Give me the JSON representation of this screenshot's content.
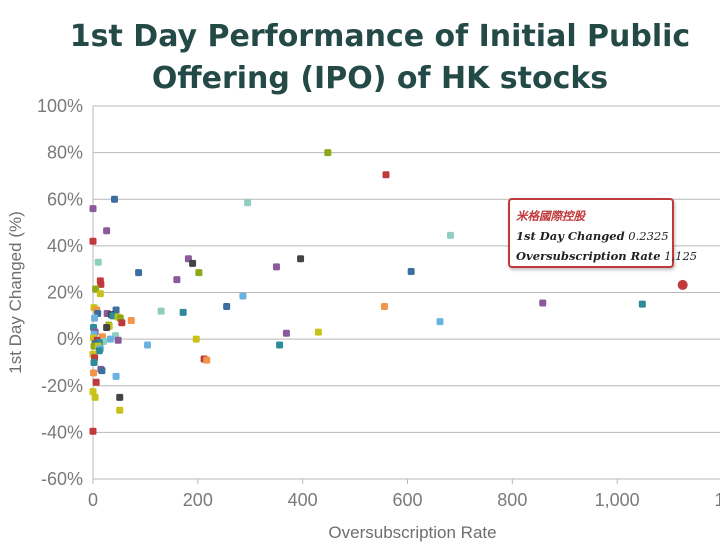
{
  "chart_data": {
    "type": "scatter",
    "title_lines": [
      "1st Day Performance of Initial Public",
      "Offering (IPO) of HK stocks"
    ],
    "xlabel": "Oversubscription Rate",
    "ylabel": "1st Day Changed (%)",
    "xlim": [
      0,
      1200
    ],
    "ylim": [
      -60,
      100
    ],
    "x_ticks": [
      "0",
      "200",
      "400",
      "600",
      "800",
      "1,000",
      "1,"
    ],
    "y_ticks": [
      "-60%",
      "-40%",
      "-20%",
      "0%",
      "20%",
      "40%",
      "60%",
      "80%",
      "100%"
    ],
    "grid": "horizontal",
    "tooltip": {
      "name": "米格國際控股",
      "label1": "1st Day Changed",
      "value1": "0.2325",
      "label2": "Oversubscription Rate",
      "value2": "1,125"
    },
    "points": [
      {
        "x": 448,
        "y": 80,
        "c": "#8aaa1a"
      },
      {
        "x": 559,
        "y": 70.5,
        "c": "#c0393b"
      },
      {
        "x": 41,
        "y": 60,
        "c": "#3e6e9e"
      },
      {
        "x": 295,
        "y": 58.5,
        "c": "#8ecfc0"
      },
      {
        "x": 0,
        "y": 56,
        "c": "#8b5a9a"
      },
      {
        "x": 26,
        "y": 46.5,
        "c": "#8b5a9a"
      },
      {
        "x": 682,
        "y": 44.5,
        "c": "#8ecfc0"
      },
      {
        "x": 0,
        "y": 42,
        "c": "#c0393b"
      },
      {
        "x": 396,
        "y": 34.5,
        "c": "#444444"
      },
      {
        "x": 182,
        "y": 34.5,
        "c": "#8b5a9a"
      },
      {
        "x": 10,
        "y": 33,
        "c": "#8ecfc0"
      },
      {
        "x": 190,
        "y": 32.5,
        "c": "#444444"
      },
      {
        "x": 350,
        "y": 31,
        "c": "#8b5a9a"
      },
      {
        "x": 607,
        "y": 29,
        "c": "#3e6e9e"
      },
      {
        "x": 87,
        "y": 28.5,
        "c": "#3e6e9e"
      },
      {
        "x": 202,
        "y": 28.5,
        "c": "#8aaa1a"
      },
      {
        "x": 160,
        "y": 25.5,
        "c": "#8b5a9a"
      },
      {
        "x": 14,
        "y": 25,
        "c": "#c0393b"
      },
      {
        "x": 15,
        "y": 23.5,
        "c": "#c0393b"
      },
      {
        "x": 1125,
        "y": 23.25,
        "c": "#c0393b",
        "r": 5
      },
      {
        "x": 5,
        "y": 21.5,
        "c": "#8aaa1a"
      },
      {
        "x": 14,
        "y": 19.5,
        "c": "#c9c21a"
      },
      {
        "x": 286,
        "y": 18.5,
        "c": "#6ab3e0"
      },
      {
        "x": 858,
        "y": 15.5,
        "c": "#8b5a9a"
      },
      {
        "x": 1048,
        "y": 15,
        "c": "#2e8b9a"
      },
      {
        "x": 556,
        "y": 14,
        "c": "#f0954a"
      },
      {
        "x": 255,
        "y": 14,
        "c": "#3e6e9e"
      },
      {
        "x": 2,
        "y": 13.5,
        "c": "#c9c21a"
      },
      {
        "x": 7,
        "y": 12.5,
        "c": "#f0954a"
      },
      {
        "x": 44,
        "y": 12.5,
        "c": "#3e6e9e"
      },
      {
        "x": 130,
        "y": 12,
        "c": "#8ecfc0"
      },
      {
        "x": 172,
        "y": 11.5,
        "c": "#2e8b9a"
      },
      {
        "x": 27,
        "y": 11,
        "c": "#8b5a9a"
      },
      {
        "x": 9,
        "y": 11,
        "c": "#3e6e9e"
      },
      {
        "x": 35,
        "y": 10.5,
        "c": "#444444"
      },
      {
        "x": 38,
        "y": 10,
        "c": "#2e8b9a"
      },
      {
        "x": 48,
        "y": 9.5,
        "c": "#c9c21a"
      },
      {
        "x": 52,
        "y": 9,
        "c": "#8aaa1a"
      },
      {
        "x": 3,
        "y": 9,
        "c": "#6ab3e0"
      },
      {
        "x": 73,
        "y": 8,
        "c": "#f0954a"
      },
      {
        "x": 662,
        "y": 7.5,
        "c": "#6ab3e0"
      },
      {
        "x": 55,
        "y": 7,
        "c": "#c0393b"
      },
      {
        "x": 30,
        "y": 6,
        "c": "#8aaa1a"
      },
      {
        "x": 31,
        "y": 5.5,
        "c": "#c9c21a"
      },
      {
        "x": 26,
        "y": 5,
        "c": "#444444"
      },
      {
        "x": 1,
        "y": 5,
        "c": "#2e8b9a"
      },
      {
        "x": 4,
        "y": 3,
        "c": "#8b5a9a"
      },
      {
        "x": 430,
        "y": 3,
        "c": "#c9c21a"
      },
      {
        "x": 369,
        "y": 2.5,
        "c": "#8b5a9a"
      },
      {
        "x": 2,
        "y": 2,
        "c": "#6ab3e0"
      },
      {
        "x": 43,
        "y": 1.5,
        "c": "#8ecfc0"
      },
      {
        "x": 18,
        "y": 1,
        "c": "#f0954a"
      },
      {
        "x": 1,
        "y": 0.5,
        "c": "#c9c21a"
      },
      {
        "x": 197,
        "y": 0,
        "c": "#c9c21a"
      },
      {
        "x": 33,
        "y": 0,
        "c": "#6ab3e0"
      },
      {
        "x": 48,
        "y": -0.5,
        "c": "#8b5a9a"
      },
      {
        "x": 8,
        "y": -0.5,
        "c": "#c0393b"
      },
      {
        "x": 20,
        "y": -1,
        "c": "#8ecfc0"
      },
      {
        "x": 12,
        "y": -1.5,
        "c": "#2e8b9a"
      },
      {
        "x": 4,
        "y": -2,
        "c": "#3e6e9e"
      },
      {
        "x": 104,
        "y": -2.5,
        "c": "#6ab3e0"
      },
      {
        "x": 356,
        "y": -2.5,
        "c": "#2e8b9a"
      },
      {
        "x": 2,
        "y": -3,
        "c": "#8aaa1a"
      },
      {
        "x": 10,
        "y": -3,
        "c": "#c9c21a"
      },
      {
        "x": 14,
        "y": -4,
        "c": "#6ab3e0"
      },
      {
        "x": 12,
        "y": -5,
        "c": "#2e8b9a"
      },
      {
        "x": 0,
        "y": -6.5,
        "c": "#c9c21a"
      },
      {
        "x": 3,
        "y": -8,
        "c": "#c0393b"
      },
      {
        "x": 212,
        "y": -8.5,
        "c": "#c0393b"
      },
      {
        "x": 217,
        "y": -9,
        "c": "#f0954a"
      },
      {
        "x": 2,
        "y": -10,
        "c": "#2e8b9a"
      },
      {
        "x": 15,
        "y": -13,
        "c": "#8b5a9a"
      },
      {
        "x": 17,
        "y": -13.5,
        "c": "#3e6e9e"
      },
      {
        "x": 1,
        "y": -14.5,
        "c": "#f0954a"
      },
      {
        "x": 44,
        "y": -16,
        "c": "#6ab3e0"
      },
      {
        "x": 6,
        "y": -18.5,
        "c": "#c0393b"
      },
      {
        "x": 0,
        "y": -22.5,
        "c": "#c9c21a"
      },
      {
        "x": 4,
        "y": -25,
        "c": "#c9c21a"
      },
      {
        "x": 51,
        "y": -25,
        "c": "#444444"
      },
      {
        "x": 51,
        "y": -30.5,
        "c": "#c9c21a"
      },
      {
        "x": 0,
        "y": -39.5,
        "c": "#c0393b"
      }
    ]
  }
}
